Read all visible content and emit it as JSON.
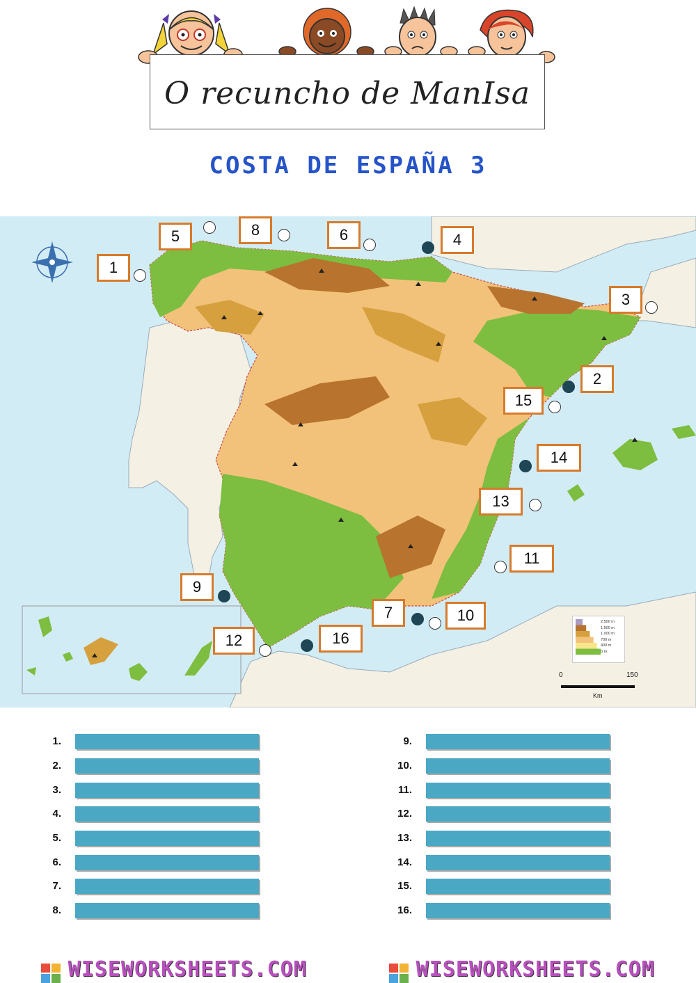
{
  "header": {
    "banner_text": "O recuncho de ManIsa"
  },
  "title": "COSTA DE ESPAÑA 3",
  "map": {
    "labels": [
      "1",
      "2",
      "3",
      "4",
      "5",
      "6",
      "7",
      "8",
      "9",
      "10",
      "11",
      "12",
      "13",
      "14",
      "15",
      "16"
    ],
    "legend": {
      "elevations": [
        "2.500 m",
        "1.500 m",
        "1.000 m",
        "700 m",
        "400 m",
        "0 m"
      ],
      "colors": [
        "#a99bc2",
        "#b8732e",
        "#d6a03f",
        "#f2c27a",
        "#f6e68c",
        "#7dbd3f"
      ]
    },
    "scale": {
      "start": "0",
      "end": "150",
      "unit": "Km"
    },
    "colors": {
      "sea": "#d2ecf6",
      "spain_land": "#f2c27a",
      "lowland": "#7dbd3f",
      "other_land": "#f4f1e4",
      "box_border": "#d67b2c",
      "dot_filled": "#1e4654"
    }
  },
  "answers": {
    "left": [
      "1.",
      "2.",
      "3.",
      "4.",
      "5.",
      "6.",
      "7.",
      "8."
    ],
    "right": [
      "9.",
      "10.",
      "11.",
      "12.",
      "13.",
      "14.",
      "15.",
      "16."
    ]
  },
  "footer": {
    "text": "WISEWORKSHEETS.COM"
  }
}
